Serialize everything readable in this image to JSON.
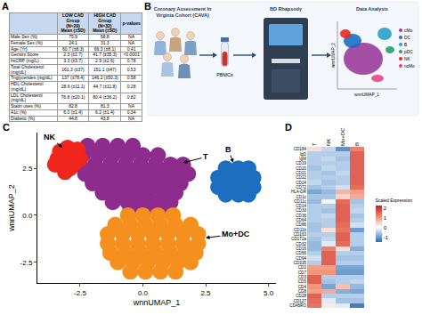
{
  "panel_labels": [
    "A",
    "B",
    "C",
    "D"
  ],
  "table": {
    "header": [
      null,
      [
        "LOW CAD",
        "Group",
        "(N=29)",
        "Mean (±SD)"
      ],
      [
        "HIGH CAD",
        "Group",
        "(N=32)",
        "Mean (±SD)"
      ],
      [
        "p-values"
      ]
    ],
    "rows": [
      [
        "Male Sex (%)",
        "75.9",
        "68.8",
        "NA"
      ],
      [
        "Female Sex (%)",
        "24.1",
        "31.3",
        "NA"
      ],
      [
        "Age (Yr)",
        "60.7 (±8.3)",
        "66.3 (±8.1)",
        "0.41"
      ],
      [
        "Gensini Score",
        "2.3 (±2.7)",
        "41.7 (±35.3)",
        "<0.0001"
      ],
      [
        "hsCRP (mg/L)",
        "3.3 (±3.7)",
        "2.9 (±2.6)",
        "0.78"
      ],
      [
        "Total Cholesterol (mg/dL)",
        "161.3 (±37)",
        "151.1 (±47)",
        "0.53"
      ],
      [
        "Triglycerides (mg/dL)",
        "137 (±78.4)",
        "146.2 (±50.3)",
        "0.58"
      ],
      [
        "HDL Cholesterol (mg/dL)",
        "28.6 (±11.1)",
        "44.7 (±11.8)",
        "0.28"
      ],
      [
        "LDL Cholesterol (mg/dL)",
        "76.8 (±20.1)",
        "80.4 (±36.2)",
        "0.82"
      ],
      [
        "Statin uses (%)",
        "82.8",
        "81.3",
        "NA"
      ],
      [
        "A1c (%)",
        "6.0 (±1.4)",
        "6.2 (±1.4)",
        "0.34"
      ],
      [
        "Diabetic (%)",
        "44.8",
        "43.8",
        "NA"
      ]
    ]
  },
  "workflow": {
    "cohort_title": [
      "Coronary Assessment In",
      "Virginia Cohort (CAVA)"
    ],
    "sample_label": "PBMCs",
    "instrument_title": "BD Rhapsody",
    "analysis_title": "Data Analysis",
    "mini_umap": {
      "x_label": "wnnUMAP_1",
      "y_label": "wnnUMAP_2",
      "legend": [
        {
          "name": "cMo",
          "color": "#9b3b9b"
        },
        {
          "name": "DC",
          "color": "#1c6ec0"
        },
        {
          "name": "B",
          "color": "#2aa0c8"
        },
        {
          "name": "pDC",
          "color": "#22a36a"
        },
        {
          "name": "NK",
          "color": "#f0251c"
        },
        {
          "name": "ncMo",
          "color": "#e8418c"
        }
      ]
    }
  },
  "chart_data": [
    {
      "type": "scatter",
      "x_label": "wnnUMAP_1",
      "y_label": "wnnUMAP_2",
      "xlim": [
        -4.2,
        5.3
      ],
      "ylim": [
        -3.6,
        4.4
      ],
      "xticks": [
        -2.5,
        {
          "value": 0,
          "label": "0.0"
        },
        2.5,
        {
          "value": 5,
          "label": "5.0"
        }
      ],
      "yticks": [
        -2.5,
        {
          "value": 0,
          "label": "0.0"
        },
        2.5
      ],
      "grid": false,
      "series": [
        {
          "name": "T",
          "color": "#8e2c8e",
          "label_at": [
            2.5,
            3.1
          ],
          "arrow_to": [
            1.6,
            2.8
          ],
          "x": [
            -2.2,
            -1.6,
            -1.0,
            -0.4,
            -2.4,
            -1.8,
            -1.2,
            -0.6,
            0.0,
            0.6,
            -2.5,
            -1.9,
            -1.3,
            -0.7,
            -0.1,
            0.5,
            1.1,
            1.6,
            -2.3,
            -1.7,
            -1.1,
            -0.5,
            0.1,
            0.7,
            1.3,
            1.8,
            -2.0,
            -1.4,
            -0.8,
            -0.2,
            0.4,
            1.0,
            1.5,
            -1.6,
            -1.0,
            -0.4,
            0.2,
            0.8,
            1.3,
            -1.2,
            -0.6,
            0.0,
            0.6,
            1.1,
            -0.5,
            0.2,
            0.8
          ],
          "y": [
            3.7,
            3.7,
            3.7,
            3.7,
            3.2,
            3.2,
            3.2,
            3.2,
            3.2,
            3.2,
            2.7,
            2.7,
            2.7,
            2.7,
            2.7,
            2.7,
            2.7,
            2.7,
            2.2,
            2.2,
            2.2,
            2.2,
            2.2,
            2.2,
            2.2,
            2.2,
            1.7,
            1.7,
            1.7,
            1.7,
            1.7,
            1.7,
            1.7,
            1.2,
            1.2,
            1.2,
            1.2,
            1.2,
            1.2,
            0.7,
            0.7,
            0.7,
            0.7,
            0.7,
            0.3,
            0.3,
            0.3
          ]
        },
        {
          "name": "Mo+DC",
          "color": "#f5901e",
          "label_at": [
            3.7,
            -1.0
          ],
          "arrow_to": [
            2.5,
            -1.2
          ],
          "x": [
            -0.6,
            0.0,
            0.6,
            1.2,
            -1.1,
            -0.5,
            0.1,
            0.7,
            1.3,
            1.9,
            -1.4,
            -0.8,
            -0.2,
            0.4,
            1.0,
            1.6,
            2.2,
            -1.4,
            -0.8,
            -0.2,
            0.4,
            1.0,
            1.6,
            2.2,
            -1.3,
            -0.7,
            -0.1,
            0.5,
            1.1,
            1.7,
            2.1,
            -1.0,
            -0.4,
            0.2,
            0.8,
            1.4,
            1.9,
            -0.5,
            0.1,
            0.7,
            1.3
          ],
          "y": [
            0.0,
            0.0,
            0.0,
            0.0,
            -0.5,
            -0.5,
            -0.5,
            -0.5,
            -0.5,
            -0.5,
            -1.0,
            -1.0,
            -1.0,
            -1.0,
            -1.0,
            -1.0,
            -1.0,
            -1.5,
            -1.5,
            -1.5,
            -1.5,
            -1.5,
            -1.5,
            -1.5,
            -2.0,
            -2.0,
            -2.0,
            -2.0,
            -2.0,
            -2.0,
            -2.0,
            -2.5,
            -2.5,
            -2.5,
            -2.5,
            -2.5,
            -2.5,
            -3.0,
            -3.0,
            -3.0,
            -3.0
          ]
        },
        {
          "name": "B",
          "color": "#1c6ec0",
          "label_at": [
            3.4,
            3.5
          ],
          "arrow_to": [
            3.6,
            2.8
          ],
          "x": [
            3.3,
            3.8,
            4.2,
            3.0,
            3.5,
            4.0,
            4.4,
            3.0,
            3.5,
            4.0,
            4.4,
            3.3,
            3.8,
            4.2
          ],
          "y": [
            2.5,
            2.5,
            2.5,
            2.0,
            2.0,
            2.0,
            2.0,
            1.5,
            1.5,
            1.5,
            1.5,
            1.1,
            1.1,
            1.1
          ]
        },
        {
          "name": "NK",
          "color": "#f0251c",
          "label_at": [
            -3.7,
            4.15
          ],
          "arrow_to": [
            -3.2,
            3.6
          ],
          "x": [
            -3.4,
            -3.3,
            -3.2,
            -3.0,
            -3.0,
            -2.9,
            -2.8,
            -2.7,
            -2.6,
            -3.5,
            -3.1,
            -2.5
          ],
          "y": [
            3.0,
            3.4,
            2.6,
            3.6,
            3.1,
            2.5,
            3.3,
            2.8,
            3.5,
            2.7,
            2.3,
            3.0
          ]
        }
      ]
    },
    {
      "type": "heatmap",
      "columns": [
        "T",
        "NK",
        "Mo+DC",
        "B"
      ],
      "rows": [
        "CD184",
        "IgD",
        "IgM",
        "CD19",
        "CD20",
        "CD21",
        "CD22",
        "CD24",
        "CD72",
        "HLA-DR",
        "CD1c",
        "CD11c",
        "CD14",
        "CD33",
        "CD36",
        "CD64",
        "CD86",
        "CD11b",
        "CD163",
        "CD172a",
        "CD32",
        "CD16",
        "CD56",
        "CD94",
        "CD335",
        "CD2",
        "CD7",
        "CD3",
        "CD5",
        "CD4",
        "CD8",
        "CD28",
        "CD127",
        "CD45RO"
      ],
      "cells": [
        [
          0.3,
          -0.4,
          -1.1,
          1.2
        ],
        [
          -0.5,
          -0.5,
          -0.5,
          1.5
        ],
        [
          -0.5,
          -0.4,
          -0.6,
          1.5
        ],
        [
          -0.5,
          -0.5,
          -0.5,
          1.5
        ],
        [
          -0.6,
          -0.4,
          -0.5,
          1.5
        ],
        [
          -0.5,
          -0.6,
          -0.4,
          1.5
        ],
        [
          -0.5,
          -0.5,
          -0.5,
          1.5
        ],
        [
          -0.4,
          -0.6,
          -0.5,
          1.5
        ],
        [
          -0.6,
          -0.5,
          -0.3,
          1.4
        ],
        [
          -0.9,
          -0.7,
          0.7,
          0.9
        ],
        [
          -0.6,
          -0.6,
          0.4,
          0.8
        ],
        [
          -0.7,
          -0.1,
          1.4,
          -0.6
        ],
        [
          -0.5,
          -0.5,
          1.5,
          -0.5
        ],
        [
          -0.5,
          -0.6,
          1.5,
          -0.4
        ],
        [
          -0.5,
          -0.4,
          1.5,
          -0.6
        ],
        [
          -0.5,
          -0.5,
          1.5,
          -0.5
        ],
        [
          -0.6,
          -0.5,
          1.4,
          -0.3
        ],
        [
          -0.6,
          0.3,
          1.3,
          -1.0
        ],
        [
          -0.5,
          -0.5,
          1.5,
          -0.5
        ],
        [
          -0.6,
          -0.4,
          1.5,
          -0.5
        ],
        [
          -0.7,
          -0.2,
          1.4,
          -0.5
        ],
        [
          -0.7,
          1.2,
          0.3,
          -0.8
        ],
        [
          -0.5,
          1.5,
          -0.5,
          -0.5
        ],
        [
          -0.3,
          1.5,
          -0.6,
          -0.6
        ],
        [
          -0.5,
          1.5,
          -0.5,
          -0.5
        ],
        [
          0.9,
          0.9,
          -0.9,
          -0.9
        ],
        [
          1.0,
          1.0,
          -1.0,
          -1.0
        ],
        [
          1.5,
          -0.5,
          -0.5,
          -0.5
        ],
        [
          1.5,
          -0.6,
          -0.5,
          -0.4
        ],
        [
          1.0,
          -0.9,
          0.6,
          -0.7
        ],
        [
          0.9,
          0.8,
          -0.8,
          -0.9
        ],
        [
          1.5,
          -0.5,
          -0.5,
          -0.5
        ],
        [
          1.4,
          -0.2,
          -0.6,
          -0.6
        ],
        [
          1.3,
          0.2,
          -0.2,
          -1.3
        ]
      ],
      "colorbar": {
        "title": "Scaled Expression",
        "range": [
          -1.5,
          2.2
        ],
        "ticks": [
          -1,
          0,
          1,
          2
        ]
      }
    }
  ]
}
